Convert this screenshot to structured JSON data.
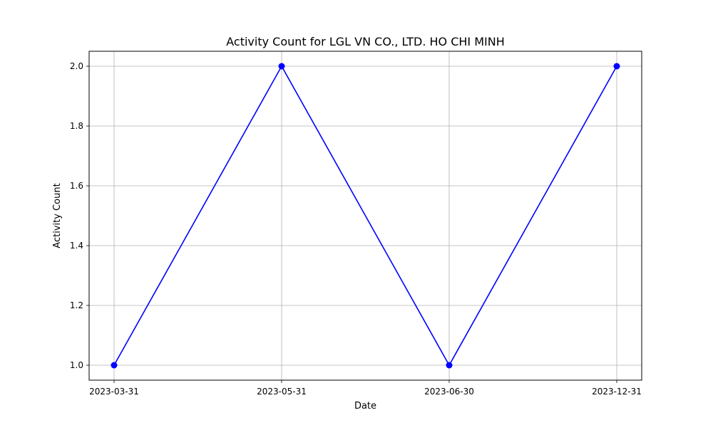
{
  "chart_data": {
    "type": "line",
    "title": "Activity Count for LGL VN CO., LTD. HO CHI MINH",
    "xlabel": "Date",
    "ylabel": "Activity Count",
    "x": [
      "2023-03-31",
      "2023-05-31",
      "2023-06-30",
      "2023-12-31"
    ],
    "series": [
      {
        "values": [
          1,
          2,
          1,
          2
        ],
        "color": "#0000ff",
        "marker": "circle"
      }
    ],
    "yticks": [
      "1.0",
      "1.2",
      "1.4",
      "1.6",
      "1.8",
      "2.0"
    ],
    "ylim": [
      0.95,
      2.05
    ],
    "grid": true,
    "legend": "none"
  }
}
